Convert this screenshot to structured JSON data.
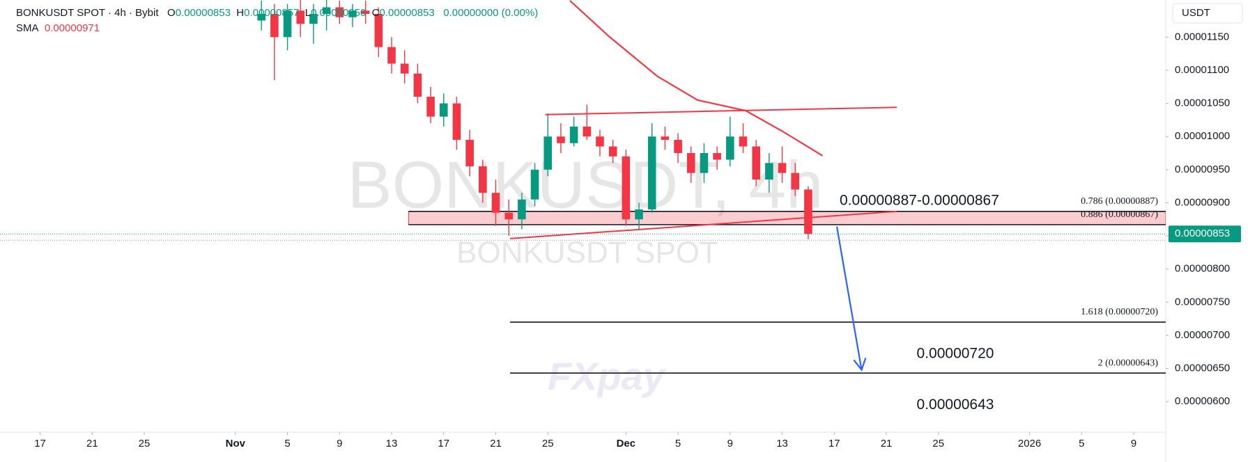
{
  "chart_data": {
    "type": "candlestick",
    "header": {
      "symbol": "BONKUSDT SPOT · 4h · Bybit",
      "open_label": "O",
      "open": "0.00000853",
      "high_label": "H",
      "high": "0.00000857",
      "low_label": "L",
      "low": "0.00000850",
      "close_label": "C",
      "close": "0.00000853",
      "change": "0.00000000 (0.00%)",
      "sma_label": "SMA",
      "sma_value": "0.00000971"
    },
    "currency": "USDT",
    "watermark": "BONKUSDT, 4h",
    "watermark_sub": "BONKUSDT SPOT",
    "logo": "FXpay",
    "up_color": "#089981",
    "down_color": "#f23645",
    "xlim": [
      -3.08,
      86.46
    ],
    "xticks": [
      {
        "value": 0,
        "label": "17"
      },
      {
        "value": 4,
        "label": "21"
      },
      {
        "value": 8,
        "label": "25"
      },
      {
        "value": 15,
        "label": "Nov"
      },
      {
        "value": 19,
        "label": "5"
      },
      {
        "value": 23,
        "label": "9"
      },
      {
        "value": 27,
        "label": "13"
      },
      {
        "value": 31,
        "label": "17"
      },
      {
        "value": 35,
        "label": "21"
      },
      {
        "value": 39,
        "label": "25"
      },
      {
        "value": 45,
        "label": "Dec"
      },
      {
        "value": 49,
        "label": "5"
      },
      {
        "value": 53,
        "label": "9"
      },
      {
        "value": 57,
        "label": "13"
      },
      {
        "value": 61,
        "label": "17"
      },
      {
        "value": 65,
        "label": "21"
      },
      {
        "value": 69,
        "label": "25"
      },
      {
        "value": 76,
        "label": "2026"
      },
      {
        "value": 80,
        "label": "5"
      },
      {
        "value": 84,
        "label": "9"
      }
    ],
    "ylim": [
      5.54e-06,
      1.206e-05
    ],
    "yticks": [
      {
        "value": 1.15e-05,
        "label": "0.00001150"
      },
      {
        "value": 1.1e-05,
        "label": "0.00001100"
      },
      {
        "value": 1.05e-05,
        "label": "0.00001050"
      },
      {
        "value": 1e-05,
        "label": "0.00001000"
      },
      {
        "value": 9.5e-06,
        "label": "0.00000950"
      },
      {
        "value": 9e-06,
        "label": "0.00000900"
      },
      {
        "value": 8.5e-06,
        "label": "0.00000850"
      },
      {
        "value": 8e-06,
        "label": "0.00000800"
      },
      {
        "value": 7.5e-06,
        "label": "0.00000750"
      },
      {
        "value": 7e-06,
        "label": "0.00000700"
      },
      {
        "value": 6.5e-06,
        "label": "0.00000650"
      },
      {
        "value": 6e-06,
        "label": "0.00000600"
      }
    ],
    "x": [
      17,
      18,
      19,
      20,
      21,
      22,
      23,
      24,
      25,
      26,
      27,
      28,
      29,
      30,
      31,
      32,
      33,
      34,
      35,
      36,
      37,
      38,
      39,
      40,
      41,
      42,
      43,
      44,
      45,
      46,
      47,
      48,
      49,
      50,
      51,
      52,
      53,
      54,
      55,
      56,
      57,
      58,
      59
    ],
    "open": [
      1.175e-05,
      1.185e-05,
      1.15e-05,
      1.19e-05,
      1.17e-05,
      1.185e-05,
      1.195e-05,
      1.18e-05,
      1.19e-05,
      1.185e-05,
      1.135e-05,
      1.11e-05,
      1.095e-05,
      1.06e-05,
      1.03e-05,
      1.05e-05,
      9.95e-06,
      9.55e-06,
      9.15e-06,
      8.85e-06,
      8.75e-06,
      9.05e-06,
      9.5e-06,
      1e-05,
      9.9e-06,
      1.015e-05,
      1e-05,
      9.85e-06,
      9.7e-06,
      8.75e-06,
      8.9e-06,
      1e-05,
      9.95e-06,
      9.75e-06,
      9.45e-06,
      9.75e-06,
      9.65e-06,
      1e-05,
      9.85e-06,
      9.35e-06,
      9.6e-06,
      9.45e-06,
      9.2e-06
    ],
    "high": [
      1.205e-05,
      1.2e-05,
      1.2e-05,
      1.21e-05,
      1.2e-05,
      1.21e-05,
      1.205e-05,
      1.2e-05,
      1.205e-05,
      1.195e-05,
      1.15e-05,
      1.13e-05,
      1.11e-05,
      1.075e-05,
      1.065e-05,
      1.06e-05,
      1.01e-05,
      9.65e-06,
      9.35e-06,
      9.05e-06,
      9.15e-06,
      9.6e-06,
      1.035e-05,
      1.02e-05,
      1.03e-05,
      1.048e-05,
      1.01e-05,
      9.95e-06,
      9.8e-06,
      9e-06,
      1.02e-05,
      1.015e-05,
      1.005e-05,
      9.85e-06,
      9.9e-06,
      9.85e-06,
      1.03e-05,
      1.02e-05,
      9.95e-06,
      9.75e-06,
      9.85e-06,
      9.6e-06,
      9.25e-06
    ],
    "low": [
      1.16e-05,
      1.085e-05,
      1.13e-05,
      1.15e-05,
      1.14e-05,
      1.16e-05,
      1.17e-05,
      1.165e-05,
      1.17e-05,
      1.12e-05,
      1.095e-05,
      1.08e-05,
      1.05e-05,
      1.02e-05,
      1.015e-05,
      9.8e-06,
      9.4e-06,
      9e-06,
      8.65e-06,
      8.5e-06,
      8.6e-06,
      8.95e-06,
      9.4e-06,
      9.75e-06,
      9.85e-06,
      9.95e-06,
      9.7e-06,
      9.6e-06,
      8.65e-06,
      8.6e-06,
      8.85e-06,
      9.8e-06,
      9.6e-06,
      9.3e-06,
      9.3e-06,
      9.5e-06,
      9.55e-06,
      9.75e-06,
      9.25e-06,
      9.15e-06,
      9.3e-06,
      9.1e-06,
      8.45e-06
    ],
    "close": [
      1.185e-05,
      1.15e-05,
      1.19e-05,
      1.17e-05,
      1.185e-05,
      1.195e-05,
      1.18e-05,
      1.19e-05,
      1.185e-05,
      1.135e-05,
      1.11e-05,
      1.095e-05,
      1.06e-05,
      1.03e-05,
      1.05e-05,
      9.95e-06,
      9.55e-06,
      9.15e-06,
      8.85e-06,
      8.75e-06,
      9.05e-06,
      9.5e-06,
      1e-05,
      9.9e-06,
      1.015e-05,
      1e-05,
      9.85e-06,
      9.7e-06,
      8.75e-06,
      8.9e-06,
      1e-05,
      9.95e-06,
      9.75e-06,
      9.45e-06,
      9.75e-06,
      9.65e-06,
      1e-05,
      9.85e-06,
      9.35e-06,
      9.6e-06,
      9.45e-06,
      9.2e-06,
      8.53e-06
    ],
    "sma": {
      "color": "#f23645",
      "x": [
        40.7,
        43.7,
        47.4,
        50.5,
        54.2,
        57.1,
        60.1
      ],
      "values": [
        1.205e-05,
        1.151e-05,
        1.091e-05,
        1.055e-05,
        1.039e-05,
        1.007e-05,
        9.71e-06
      ]
    },
    "last_price": {
      "value": 8.53e-06,
      "label": "0.00000853"
    },
    "zone": {
      "x": [
        28.3,
        86.46
      ],
      "values": [
        8.87e-06,
        8.67e-06
      ],
      "label": "0.00000887-0.00000867"
    },
    "fib_levels": [
      {
        "label": "0.786 (0.00000887)",
        "value": 8.87e-06,
        "x": [
          28.3,
          86.46
        ]
      },
      {
        "label": "0.886 (0.00000867)",
        "value": 8.67e-06,
        "x": [
          28.3,
          86.46
        ]
      },
      {
        "label": "1.618 (0.00000720)",
        "value": 7.2e-06,
        "x": [
          36.1,
          86.46
        ]
      },
      {
        "label": "2 (0.00000643)",
        "value": 6.43e-06,
        "x": [
          36.1,
          86.46
        ]
      }
    ],
    "targets": [
      "0.00000720",
      "0.00000643"
    ],
    "trendlines": [
      {
        "color": "#f23645",
        "x": [
          38.8,
          65.8
        ],
        "values": [
          1.033e-05,
          1.044e-05
        ]
      },
      {
        "color": "#f23645",
        "x": [
          36.1,
          65.8
        ],
        "values": [
          8.46e-06,
          8.87e-06
        ]
      }
    ],
    "arrow": {
      "color": "#2962ff",
      "x": [
        61.2,
        63.1
      ],
      "values": [
        8.64e-06,
        6.48e-06
      ]
    }
  }
}
